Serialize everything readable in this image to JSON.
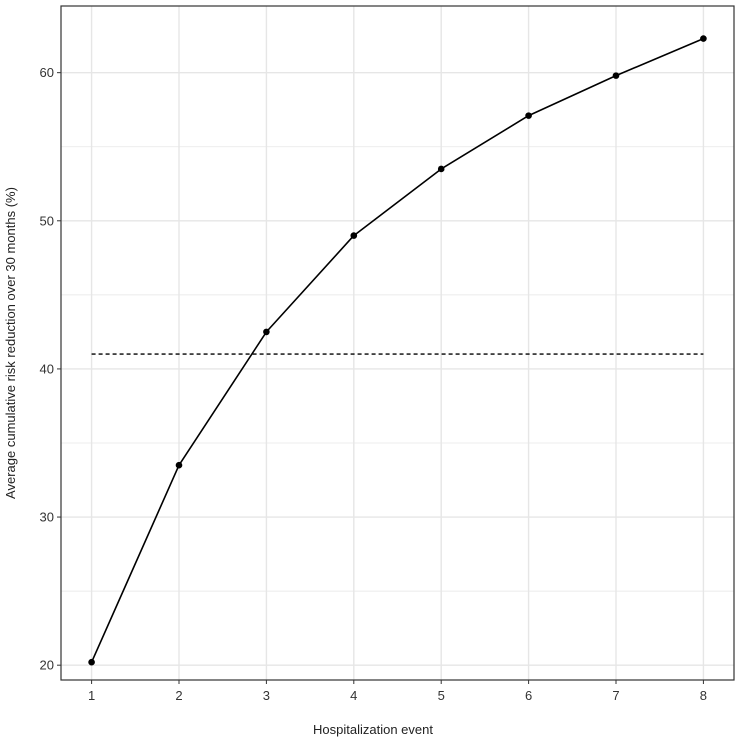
{
  "chart_data": {
    "type": "line",
    "title": "",
    "xlabel": "Hospitalization event",
    "ylabel": "Average cumulative risk reduction over 30 months (%)",
    "x": [
      1,
      2,
      3,
      4,
      5,
      6,
      7,
      8
    ],
    "series": [
      {
        "values": [
          20.2,
          33.5,
          42.5,
          49.0,
          53.5,
          57.1,
          59.8,
          62.3
        ],
        "color": "#000000",
        "style": "solid",
        "markers": true
      }
    ],
    "reference_line": {
      "y": 41.0,
      "x_range": [
        1,
        8
      ],
      "style": "dashed",
      "color": "#000000"
    },
    "xlim": [
      0.65,
      8.35
    ],
    "ylim": [
      19,
      64.5
    ],
    "xticks": [
      "1",
      "2",
      "3",
      "4",
      "5",
      "6",
      "7",
      "8"
    ],
    "xtick_values": [
      1,
      2,
      3,
      4,
      5,
      6,
      7,
      8
    ],
    "yticks": [
      "20",
      "30",
      "40",
      "50",
      "60"
    ],
    "ytick_values": [
      20,
      30,
      40,
      50,
      60
    ],
    "y_minor_gridlines": [
      25,
      35,
      45,
      55
    ],
    "grid": true,
    "legend": "none",
    "background": "#ffffff",
    "grid_color": "#e6e6e6",
    "panel_border_color": "#333333"
  }
}
